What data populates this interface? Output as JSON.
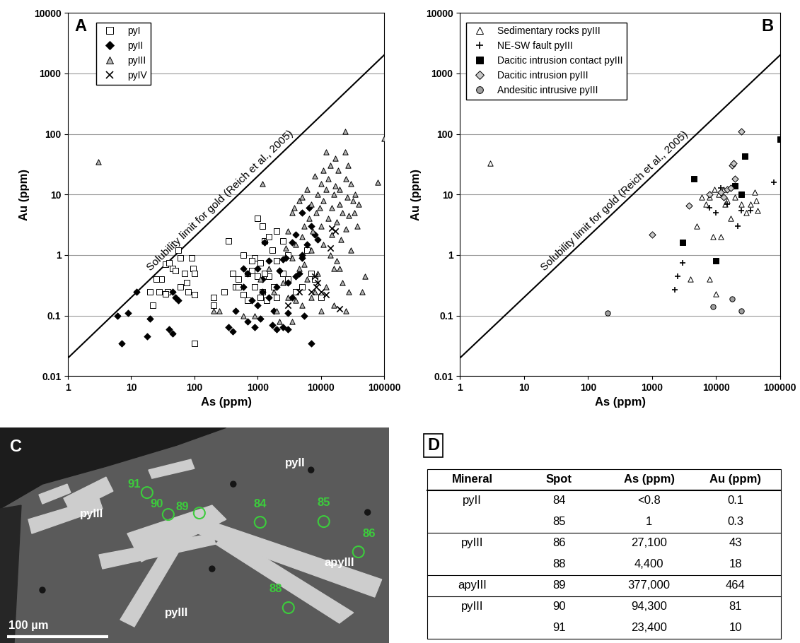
{
  "chart_data": [
    {
      "type": "scatter",
      "panel_label": "A",
      "xlabel": "As (ppm)",
      "ylabel": "Au (ppm)",
      "log": true,
      "xlim": [
        1,
        100000
      ],
      "ylim": [
        0.01,
        10000
      ],
      "xticks": [
        1,
        10,
        100,
        1000,
        10000,
        100000
      ],
      "yticks": [
        0.01,
        0.1,
        1,
        10,
        100,
        1000,
        10000
      ],
      "grid": "y",
      "legend": "upper left",
      "reference_line": {
        "text": "Solubility limit for gold (Reich et al., 2005)",
        "x": [
          1,
          100000
        ],
        "values": [
          0.02,
          2000
        ],
        "color": "#000000"
      },
      "series": [
        {
          "name": "pyI",
          "marker": "square",
          "color": "#ffffff",
          "x": [
            35,
            40,
            45,
            55,
            60,
            50,
            70,
            75,
            90,
            95,
            100,
            30,
            25,
            28,
            38,
            35,
            20,
            22,
            60,
            80,
            100,
            100,
            200,
            200,
            300,
            350,
            400,
            450,
            500,
            600,
            700,
            800,
            900,
            1000,
            1200,
            1300,
            1500,
            1700,
            2000,
            2000,
            2500,
            800,
            900,
            1000,
            1100,
            1200,
            1500,
            1800,
            2000,
            2500,
            3000,
            3000,
            4000,
            5000,
            6000,
            7000,
            8000,
            10000,
            1100,
            1300,
            1400,
            700,
            500,
            600
          ],
          "values": [
            0.7,
            0.75,
            0.6,
            1.2,
            0.9,
            0.55,
            0.5,
            0.35,
            0.9,
            0.6,
            0.5,
            0.4,
            0.4,
            0.25,
            0.25,
            0.23,
            0.25,
            0.15,
            0.3,
            0.25,
            0.22,
            0.035,
            0.2,
            0.15,
            0.25,
            1.7,
            0.5,
            0.3,
            0.4,
            1.0,
            0.5,
            0.55,
            0.9,
            4,
            3,
            1.7,
            2,
            1.2,
            0.8,
            2.5,
            1.7,
            0.8,
            0.3,
            0.45,
            0.2,
            0.25,
            0.45,
            0.3,
            0.2,
            0.5,
            0.4,
            1.0,
            0.25,
            0.3,
            1.2,
            0.5,
            0.4,
            0.2,
            0.75,
            0.5,
            0.18,
            0.18,
            0.3,
            0.22
          ]
        },
        {
          "name": "pyII",
          "marker": "diamond",
          "color": "#000000",
          "x": [
            6,
            7,
            9,
            12,
            18,
            20,
            40,
            45,
            50,
            55,
            45,
            350,
            400,
            450,
            600,
            700,
            800,
            900,
            1000,
            1100,
            1200,
            1300,
            1500,
            1500,
            1700,
            1800,
            2000,
            2200,
            2500,
            2500,
            2800,
            3000,
            3000,
            3500,
            3500,
            4000,
            4000,
            4500,
            5000,
            5000,
            5500,
            6000,
            6500,
            7000,
            7000,
            8000,
            9000,
            1000,
            1200,
            600,
            2000,
            3000,
            700,
            5000
          ],
          "values": [
            0.1,
            0.035,
            0.11,
            0.25,
            0.045,
            0.09,
            0.06,
            0.05,
            0.2,
            0.18,
            0.25,
            0.065,
            0.055,
            0.12,
            0.3,
            0.5,
            0.18,
            0.065,
            0.15,
            0.09,
            0.4,
            1.6,
            0.8,
            0.2,
            0.07,
            0.12,
            0.3,
            0.55,
            0.85,
            0.065,
            0.9,
            0.35,
            0.11,
            1.6,
            0.2,
            0.45,
            2.2,
            0.5,
            5,
            1.0,
            0.1,
            1.5,
            6,
            0.035,
            3,
            2.2,
            1.8,
            0.6,
            0.25,
            0.6,
            0.06,
            0.06,
            0.08,
            0.9
          ]
        },
        {
          "name": "pyIII",
          "marker": "triangle",
          "color": "#b4b4b4",
          "x": [
            3,
            200,
            250,
            600,
            900,
            1100,
            1200,
            1500,
            1800,
            2000,
            2200,
            2500,
            2800,
            3000,
            3000,
            3500,
            3500,
            3800,
            4000,
            4000,
            4500,
            4500,
            5000,
            5000,
            5500,
            5500,
            6000,
            6000,
            6500,
            7000,
            7000,
            7500,
            8000,
            8000,
            8500,
            9000,
            9000,
            10000,
            10000,
            10000,
            11000,
            11000,
            11000,
            12000,
            12000,
            13000,
            13000,
            14000,
            14000,
            15000,
            15000,
            16000,
            16000,
            17000,
            17000,
            18000,
            18000,
            19000,
            20000,
            20000,
            21000,
            22000,
            22000,
            24000,
            24000,
            25000,
            25000,
            26000,
            27000,
            28000,
            28000,
            30000,
            30000,
            32000,
            34000,
            35000,
            38000,
            40000,
            50000,
            80000,
            100000,
            45000,
            12000,
            9500,
            7000,
            5000,
            3500,
            25000,
            16000,
            20000
          ],
          "values": [
            35,
            0.12,
            0.12,
            0.1,
            0.1,
            0.4,
            15,
            0.6,
            0.25,
            0.12,
            0.08,
            0.35,
            1.3,
            2.5,
            0.2,
            5,
            0.9,
            6,
            0.18,
            1.5,
            8,
            0.6,
            9,
            2,
            0.7,
            3,
            12,
            0.4,
            4,
            1.2,
            7,
            2.5,
            20,
            0.25,
            5,
            10,
            0.5,
            15,
            3,
            0.12,
            25,
            8,
            1.5,
            12,
            0.3,
            4,
            18,
            30,
            1,
            6,
            2.2,
            10,
            0.6,
            40,
            14,
            3.5,
            0.8,
            25,
            7,
            12,
            1.8,
            5,
            0.35,
            50,
            110,
            2.7,
            18,
            9,
            30,
            4.5,
            0.25,
            15,
            1.2,
            8,
            5,
            10,
            3,
            7,
            0.45,
            16,
            85,
            0.25,
            50,
            6,
            0.2,
            0.15,
            0.08,
            0.12,
            0.15,
            0.6
          ]
        },
        {
          "name": "pyIV",
          "marker": "x",
          "color": "#000000",
          "x": [
            3000,
            4500,
            7000,
            8000,
            8500,
            9000,
            10000,
            12000,
            14000,
            15000,
            17000,
            20000
          ],
          "values": [
            0.15,
            0.25,
            0.25,
            0.45,
            0.3,
            0.35,
            0.25,
            0.22,
            1.3,
            2.8,
            2.5,
            0.13
          ]
        }
      ]
    },
    {
      "type": "scatter",
      "panel_label": "B",
      "xlabel": "As (ppm)",
      "ylabel": "Au (ppm)",
      "log": true,
      "xlim": [
        1,
        100000
      ],
      "ylim": [
        0.01,
        10000
      ],
      "xticks": [
        1,
        10,
        100,
        1000,
        10000,
        100000
      ],
      "yticks": [
        0.01,
        0.1,
        1,
        10,
        100,
        1000,
        10000
      ],
      "grid": "y",
      "legend": "upper left",
      "reference_line": {
        "text": "Solubility limit for gold (Reich et al., 2005)",
        "x": [
          1,
          100000
        ],
        "values": [
          0.02,
          2000
        ],
        "color": "#000000"
      },
      "series": [
        {
          "name": "Sedimentary rocks pyIII",
          "marker": "triangle",
          "color": "#ffffff",
          "x": [
            3,
            4000,
            5000,
            6000,
            7000,
            8000,
            8000,
            9000,
            9500,
            10000,
            11000,
            12000,
            13000,
            14000,
            15000,
            17000,
            20000,
            25000,
            30000,
            35000,
            40000,
            42000,
            45000
          ],
          "values": [
            33,
            0.4,
            3,
            9,
            7,
            9,
            0.4,
            2,
            12,
            0.23,
            10,
            2,
            12,
            7,
            8,
            4,
            9,
            7,
            5,
            7,
            11,
            8,
            5.5
          ]
        },
        {
          "name": "NE-SW fault pyIII",
          "marker": "plus",
          "color": "#000000",
          "x": [
            2300,
            2500,
            3000,
            8000,
            10000,
            12000,
            15000,
            22000,
            25000,
            35000,
            80000
          ],
          "values": [
            0.27,
            0.45,
            0.75,
            6,
            5,
            13,
            7,
            3,
            5.5,
            5.5,
            16
          ]
        },
        {
          "name": "Dacitic intrusion contact pyIII",
          "marker": "square",
          "color": "#000000",
          "x": [
            3000,
            4500,
            10000,
            20000,
            25000,
            28000,
            100000
          ],
          "values": [
            1.6,
            18,
            0.8,
            14,
            10,
            43,
            82
          ]
        },
        {
          "name": "Dacitic intrusion pyIII",
          "marker": "diamond",
          "color": "#c8c8c8",
          "x": [
            1000,
            3800,
            8000,
            12000,
            13000,
            15000,
            17000,
            18000,
            19000,
            20000,
            25000
          ],
          "values": [
            2.2,
            6.5,
            10,
            11,
            9,
            12,
            13,
            30,
            33,
            18,
            110
          ]
        },
        {
          "name": "Andesitic intrusive pyIII",
          "marker": "circle",
          "color": "#a0a0a0",
          "x": [
            200,
            9000,
            18000,
            25000
          ],
          "values": [
            0.11,
            0.14,
            0.19,
            0.12
          ]
        }
      ]
    }
  ],
  "image_panel": {
    "panel_label": "C",
    "minerals": [
      "pyII",
      "pyIII",
      "pyIII",
      "apyIII"
    ],
    "spots": [
      "91",
      "90",
      "89",
      "84",
      "85",
      "86",
      "88"
    ],
    "scale_bar": "100 µm"
  },
  "table_panel": {
    "panel_label": "D",
    "columns": [
      "Mineral",
      "Spot",
      "As (ppm)",
      "Au (ppm)"
    ],
    "groups": [
      {
        "mineral": "pyII",
        "rows": [
          [
            "84",
            "<0.8",
            "0.1"
          ],
          [
            "85",
            "1",
            "0.3"
          ]
        ]
      },
      {
        "mineral": "pyIII",
        "rows": [
          [
            "86",
            "27,100",
            "43"
          ],
          [
            "88",
            "4,400",
            "18"
          ]
        ]
      },
      {
        "mineral": "apyIII",
        "rows": [
          [
            "89",
            "377,000",
            "464"
          ]
        ]
      },
      {
        "mineral": "pyIII",
        "rows": [
          [
            "90",
            "94,300",
            "81"
          ],
          [
            "91",
            "23,400",
            "10"
          ]
        ]
      }
    ]
  }
}
